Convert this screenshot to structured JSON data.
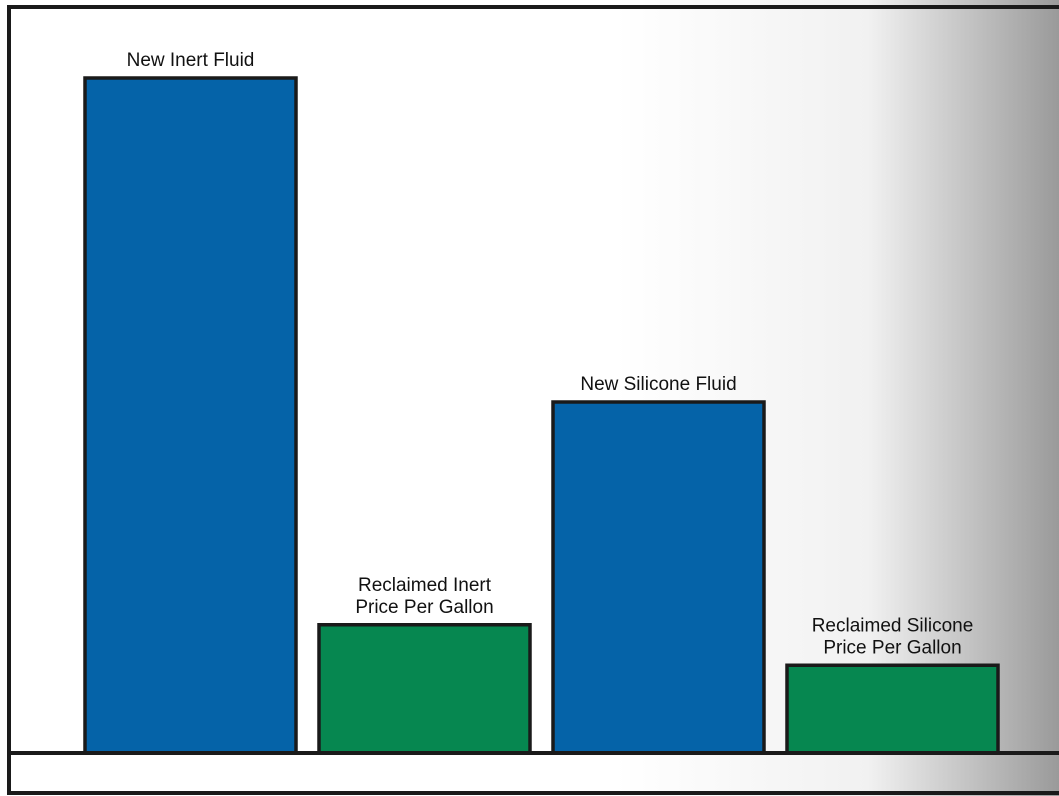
{
  "chart_data": {
    "type": "bar",
    "categories": [
      [
        "New Inert Fluid"
      ],
      [
        "Reclaimed Inert",
        "Price Per Gallon"
      ],
      [
        "New Silicone Fluid"
      ],
      [
        "Reclaimed Silicone",
        "Price Per Gallon"
      ]
    ],
    "values": [
      100,
      19,
      52,
      13
    ],
    "ylim": [
      0,
      100
    ],
    "grid": false,
    "legend": "none",
    "bar_colors": [
      "#0563a8",
      "#068750",
      "#0563a8",
      "#068750"
    ],
    "outline_color": "#1a1a1a",
    "background_fade_color": "#9a9a9a"
  }
}
